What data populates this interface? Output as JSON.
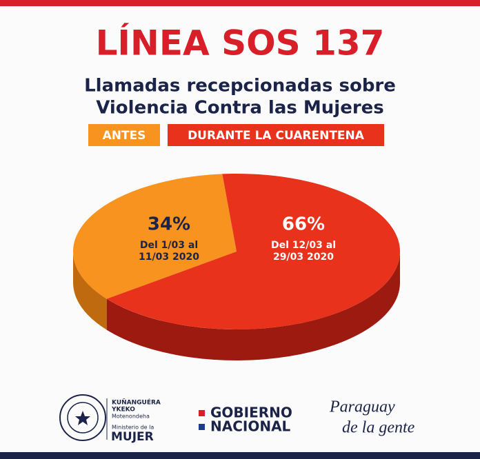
{
  "chart_data": {
    "type": "pie",
    "title": "LÍNEA SOS 137",
    "subtitle": [
      "Llamadas recepcionadas sobre",
      "Violencia Contra las Mujeres"
    ],
    "categories": [
      "ANTES",
      "DURANTE LA CUARENTENA"
    ],
    "values": [
      34,
      66
    ],
    "value_labels": [
      "34%",
      "66%"
    ],
    "slice_notes": [
      [
        "Del 1/03 al",
        "11/03 2020"
      ],
      [
        "Del 12/03 al",
        "29/03 2020"
      ]
    ],
    "colors": [
      "#f7931e",
      "#e8321c"
    ]
  },
  "footer": {
    "ministry": [
      "KUÑANGUÉRA",
      "YKEKO",
      "Motenondeha",
      "Ministerio de la",
      "MUJER"
    ],
    "government": [
      "GOBIERNO",
      "NACIONAL"
    ],
    "slogan": [
      "Paraguay",
      "de la gente"
    ]
  }
}
